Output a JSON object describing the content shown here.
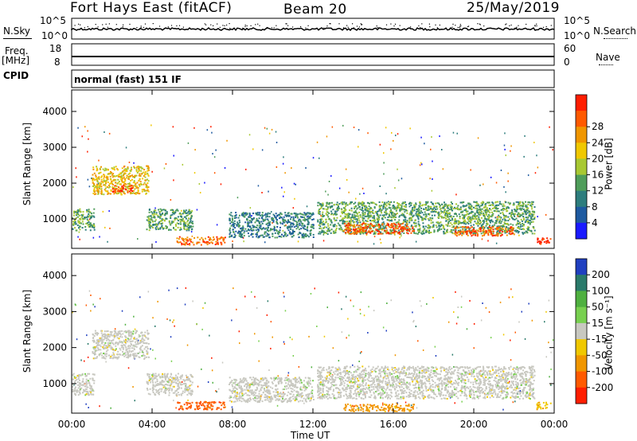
{
  "header": {
    "station_title": "Fort Hays East (fitACF)",
    "beam": "Beam 20",
    "date": "25/May/2019"
  },
  "top_panels": {
    "nsky_label": "N.Sky",
    "nsky_ticks": [
      "10^5",
      "10^0"
    ],
    "nsearch_label": "N.Search",
    "nsearch_ticks": [
      "10^5",
      "10^0"
    ],
    "freq_label_1": "Freq.",
    "freq_label_2": "[MHz]",
    "freq_ticks": [
      "18",
      "8"
    ],
    "nave_label": "Nave",
    "nave_ticks": [
      "60",
      "0"
    ],
    "cpid_label": "CPID",
    "cpid_text": "normal (fast) 151 IF"
  },
  "chart_data": [
    {
      "type": "heatmap",
      "title": "",
      "xlabel": "",
      "ylabel": "Slant Range [km]",
      "x_ticks": [
        "00:00",
        "04:00",
        "08:00",
        "12:00",
        "16:00",
        "20:00",
        "00:00"
      ],
      "y_ticks": [
        1000,
        2000,
        3000,
        4000
      ],
      "xlim_hours": [
        0,
        24
      ],
      "ylim_km": [
        180,
        4600
      ],
      "colorbar": {
        "label": "Power [dB]",
        "ticks": [
          4,
          8,
          12,
          16,
          20,
          24,
          28
        ],
        "colors": [
          "#1a1aff",
          "#1e5aa0",
          "#2d7d7d",
          "#4f9d5a",
          "#a8c832",
          "#f0c800",
          "#f09600",
          "#ff5a00",
          "#ff1e00"
        ]
      },
      "regions_approx": [
        {
          "t0": 0.0,
          "t1": 1.1,
          "r0": 700,
          "r1": 1300,
          "value_db": 14
        },
        {
          "t0": 1.0,
          "t1": 3.8,
          "r0": 1700,
          "r1": 2500,
          "value_db": 20
        },
        {
          "t0": 2.0,
          "t1": 3.0,
          "r0": 1750,
          "r1": 1950,
          "value_db": 28
        },
        {
          "t0": 3.7,
          "t1": 6.0,
          "r0": 700,
          "r1": 1300,
          "value_db": 12
        },
        {
          "t0": 5.2,
          "t1": 7.6,
          "r0": 300,
          "r1": 520,
          "value_db": 26
        },
        {
          "t0": 7.8,
          "t1": 12.0,
          "r0": 500,
          "r1": 1200,
          "value_db": 10
        },
        {
          "t0": 12.2,
          "t1": 23.0,
          "r0": 600,
          "r1": 1500,
          "value_db": 14
        },
        {
          "t0": 13.5,
          "t1": 17.0,
          "r0": 600,
          "r1": 900,
          "value_db": 24
        },
        {
          "t0": 19.0,
          "t1": 22.0,
          "r0": 550,
          "r1": 800,
          "value_db": 26
        },
        {
          "t0": 23.1,
          "t1": 23.8,
          "r0": 300,
          "r1": 500,
          "value_db": 28
        }
      ]
    },
    {
      "type": "heatmap",
      "title": "",
      "xlabel": "Time UT",
      "ylabel": "Slant Range [km]",
      "x_ticks": [
        "00:00",
        "04:00",
        "08:00",
        "12:00",
        "16:00",
        "20:00",
        "00:00"
      ],
      "y_ticks": [
        1000,
        2000,
        3000,
        4000
      ],
      "xlim_hours": [
        0,
        24
      ],
      "ylim_km": [
        180,
        4600
      ],
      "colorbar": {
        "label": "Velocity [m s⁻¹]",
        "ticks": [
          200,
          100,
          50,
          15,
          -15,
          -50,
          -100,
          -200
        ],
        "colors": [
          "#2040c0",
          "#2a7a6a",
          "#4fb040",
          "#78d050",
          "#c8c8c0",
          "#f0c800",
          "#f09600",
          "#ff5a00",
          "#ff1e00"
        ]
      },
      "regions_approx": [
        {
          "t0": 0.0,
          "t1": 1.1,
          "r0": 700,
          "r1": 1300,
          "value_ms": 0
        },
        {
          "t0": 1.0,
          "t1": 3.8,
          "r0": 1700,
          "r1": 2500,
          "value_ms": 0
        },
        {
          "t0": 3.7,
          "t1": 6.0,
          "r0": 700,
          "r1": 1300,
          "value_ms": 0
        },
        {
          "t0": 5.2,
          "t1": 7.6,
          "r0": 300,
          "r1": 520,
          "value_ms": -100
        },
        {
          "t0": 7.8,
          "t1": 12.0,
          "r0": 500,
          "r1": 1200,
          "value_ms": 0
        },
        {
          "t0": 12.2,
          "t1": 23.0,
          "r0": 600,
          "r1": 1500,
          "value_ms": 0
        },
        {
          "t0": 13.5,
          "t1": 17.0,
          "r0": 250,
          "r1": 450,
          "value_ms": -50
        },
        {
          "t0": 23.1,
          "t1": 23.8,
          "r0": 300,
          "r1": 500,
          "value_ms": -15
        }
      ]
    }
  ]
}
